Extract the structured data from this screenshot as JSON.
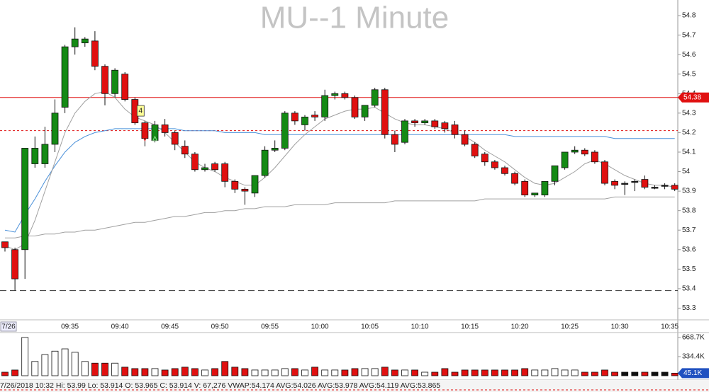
{
  "chart_data": {
    "type": "candlestick",
    "title": "MU--1 Minute",
    "categories": [
      "7/26",
      null,
      null,
      null,
      null,
      null,
      "09:35",
      null,
      null,
      null,
      null,
      "09:40",
      null,
      null,
      null,
      null,
      "09:45",
      null,
      null,
      null,
      null,
      "09:50",
      null,
      null,
      null,
      null,
      "09:55",
      null,
      null,
      null,
      null,
      "10:00",
      null,
      null,
      null,
      null,
      "10:05",
      null,
      null,
      null,
      null,
      "10:10",
      null,
      null,
      null,
      null,
      "10:15",
      null,
      null,
      null,
      null,
      "10:20",
      null,
      null,
      null,
      null,
      "10:25",
      null,
      null,
      null,
      null,
      "10:30",
      null,
      null,
      null,
      null,
      "10:35",
      null
    ],
    "open": [
      53.64,
      53.6,
      53.6,
      54.04,
      54.04,
      54.14,
      54.33,
      54.64,
      54.66,
      54.67,
      54.54,
      54.4,
      54.5,
      54.37,
      54.25,
      54.16,
      54.24,
      54.2,
      54.13,
      54.09,
      54.01,
      54.04,
      54.04,
      53.95,
      53.91,
      53.89,
      53.98,
      54.11,
      54.12,
      54.3,
      54.24,
      54.29,
      54.28,
      54.39,
      54.4,
      54.38,
      54.28,
      54.34,
      54.42,
      54.19,
      54.15,
      54.26,
      54.25,
      54.26,
      54.25,
      54.24,
      54.19,
      54.14,
      54.09,
      54.05,
      54.02,
      53.99,
      53.95,
      53.88,
      53.88,
      53.95,
      54.02,
      54.1,
      54.11,
      54.1,
      54.05,
      53.95,
      53.94,
      53.95,
      53.96,
      53.92,
      53.93,
      53.93
    ],
    "high": [
      53.64,
      53.61,
      54.12,
      54.18,
      54.23,
      54.37,
      54.65,
      54.74,
      54.69,
      54.72,
      54.55,
      54.53,
      54.51,
      54.38,
      54.26,
      54.26,
      54.27,
      54.21,
      54.16,
      54.1,
      54.04,
      54.05,
      54.05,
      53.96,
      53.92,
      53.98,
      54.13,
      54.16,
      54.31,
      54.31,
      54.29,
      54.31,
      54.42,
      54.41,
      54.41,
      54.39,
      54.34,
      54.43,
      54.43,
      54.21,
      54.27,
      54.27,
      54.27,
      54.27,
      54.26,
      54.26,
      54.21,
      54.15,
      54.1,
      54.06,
      54.03,
      54.0,
      53.96,
      53.89,
      53.95,
      54.03,
      54.1,
      54.13,
      54.12,
      54.11,
      54.06,
      53.96,
      53.95,
      53.96,
      53.98,
      53.93,
      53.94,
      53.94
    ],
    "low": [
      53.59,
      53.39,
      53.45,
      54.02,
      54.02,
      54.1,
      54.3,
      54.6,
      54.64,
      54.52,
      54.34,
      54.38,
      54.36,
      54.24,
      54.13,
      54.15,
      54.18,
      54.11,
      54.07,
      54.0,
      54.0,
      54.0,
      53.92,
      53.89,
      53.83,
      53.87,
      53.97,
      54.1,
      54.11,
      54.24,
      54.21,
      54.26,
      54.26,
      54.37,
      54.37,
      54.27,
      54.26,
      54.33,
      54.17,
      54.1,
      54.14,
      54.23,
      54.24,
      54.22,
      54.2,
      54.17,
      54.13,
      54.07,
      54.03,
      54.01,
      53.98,
      53.93,
      53.87,
      53.87,
      53.87,
      53.93,
      54.01,
      54.09,
      54.08,
      54.04,
      53.93,
      53.91,
      53.88,
      53.9,
      53.91,
      53.91,
      53.91,
      53.9
    ],
    "close": [
      53.61,
      53.45,
      54.12,
      54.12,
      54.14,
      54.3,
      54.64,
      54.68,
      54.68,
      54.54,
      54.4,
      54.52,
      54.37,
      54.25,
      54.17,
      54.24,
      54.2,
      54.14,
      54.09,
      54.01,
      54.02,
      54.01,
      53.95,
      53.91,
      53.9,
      53.98,
      54.11,
      54.12,
      54.3,
      54.26,
      54.28,
      54.28,
      54.39,
      54.4,
      54.38,
      54.28,
      54.34,
      54.42,
      54.19,
      54.14,
      54.26,
      54.25,
      54.26,
      54.23,
      54.22,
      54.19,
      54.14,
      54.08,
      54.05,
      54.02,
      53.99,
      53.94,
      53.88,
      53.89,
      53.95,
      54.03,
      54.1,
      54.11,
      54.09,
      54.05,
      53.94,
      53.93,
      53.94,
      53.95,
      53.92,
      53.92,
      53.93,
      53.91
    ],
    "up_color": "#148a14",
    "down_color": "#e01010",
    "ylim": [
      53.24,
      54.88
    ],
    "yticks": [
      53.3,
      53.4,
      53.5,
      53.6,
      53.7,
      53.8,
      53.9,
      54,
      54.1,
      54.2,
      54.3,
      54.4,
      54.5,
      54.6,
      54.7,
      54.8
    ],
    "lines": [
      {
        "color": "#4a90d9",
        "values": [
          53.7,
          53.69,
          53.78,
          53.86,
          53.95,
          54.03,
          54.1,
          54.15,
          54.18,
          54.2,
          54.21,
          54.22,
          54.22,
          54.22,
          54.22,
          54.22,
          54.22,
          54.22,
          54.21,
          54.21,
          54.21,
          54.21,
          54.2,
          54.2,
          54.2,
          54.2,
          54.19,
          54.19,
          54.19,
          54.19,
          54.19,
          54.19,
          54.19,
          54.19,
          54.19,
          54.19,
          54.19,
          54.19,
          54.19,
          54.19,
          54.19,
          54.19,
          54.19,
          54.19,
          54.19,
          54.19,
          54.19,
          54.19,
          54.19,
          54.19,
          54.19,
          54.18,
          54.18,
          54.18,
          54.18,
          54.18,
          54.18,
          54.18,
          54.18,
          54.18,
          54.18,
          54.17,
          54.17,
          54.17,
          54.17,
          54.17,
          54.17,
          54.17
        ]
      },
      {
        "color": "#a0a0a0",
        "values": [
          53.62,
          53.6,
          53.63,
          53.75,
          53.9,
          54.05,
          54.2,
          54.3,
          54.36,
          54.4,
          54.41,
          54.38,
          54.32,
          54.28,
          54.26,
          54.24,
          54.2,
          54.15,
          54.1,
          54.05,
          54.02,
          54.0,
          53.97,
          53.95,
          53.93,
          53.93,
          53.97,
          54.02,
          54.08,
          54.14,
          54.19,
          54.23,
          54.27,
          54.29,
          54.31,
          54.32,
          54.32,
          54.33,
          54.3,
          54.27,
          54.25,
          54.24,
          54.24,
          54.23,
          54.22,
          54.2,
          54.18,
          54.15,
          54.11,
          54.08,
          54.05,
          54.01,
          53.97,
          53.94,
          53.93,
          53.94,
          53.97,
          54.0,
          54.04,
          54.06,
          54.04,
          54.01,
          53.98,
          53.96,
          53.94,
          53.93,
          53.93,
          53.92
        ]
      },
      {
        "color": "#a0a0a0",
        "values": [
          53.66,
          53.66,
          53.67,
          53.67,
          53.68,
          53.68,
          53.69,
          53.69,
          53.7,
          53.7,
          53.71,
          53.72,
          53.73,
          53.74,
          53.74,
          53.75,
          53.76,
          53.77,
          53.77,
          53.78,
          53.79,
          53.79,
          53.8,
          53.8,
          53.81,
          53.81,
          53.82,
          53.82,
          53.82,
          53.83,
          53.83,
          53.83,
          53.83,
          53.84,
          53.84,
          53.84,
          53.84,
          53.84,
          53.84,
          53.85,
          53.85,
          53.85,
          53.85,
          53.85,
          53.85,
          53.85,
          53.85,
          53.85,
          53.86,
          53.86,
          53.86,
          53.86,
          53.86,
          53.86,
          53.86,
          53.86,
          53.86,
          53.86,
          53.86,
          53.86,
          53.86,
          53.87,
          53.87,
          53.87,
          53.87,
          53.87,
          53.87,
          53.87
        ]
      }
    ],
    "reference_lines": [
      {
        "value": 54.38,
        "label": "54.38",
        "color": "#e01010",
        "style": "solid"
      },
      {
        "value": 54.21,
        "color": "#e01010",
        "style": "dashed"
      },
      {
        "value": 53.39,
        "color": "#333333",
        "style": "dashed"
      }
    ],
    "annotations": [
      {
        "text": "4"
      }
    ],
    "volume": {
      "values": [
        62000,
        100000,
        670000,
        250000,
        370000,
        430000,
        470000,
        410000,
        250000,
        220000,
        220000,
        220000,
        150000,
        125000,
        125000,
        125000,
        100000,
        125000,
        150000,
        125000,
        100000,
        125000,
        250000,
        150000,
        125000,
        100000,
        100000,
        100000,
        125000,
        125000,
        100000,
        150000,
        100000,
        100000,
        100000,
        125000,
        125000,
        125000,
        150000,
        100000,
        100000,
        100000,
        62000,
        62000,
        125000,
        62000,
        100000,
        100000,
        100000,
        100000,
        100000,
        100000,
        125000,
        100000,
        100000,
        125000,
        100000,
        100000,
        62000,
        62000,
        100000,
        62000,
        62000,
        62000,
        62000,
        62000,
        62000,
        45100
      ],
      "ylim": [
        0,
        755000
      ],
      "yticks": [
        {
          "value": 668700,
          "label": "668.7K"
        },
        {
          "value": 334400,
          "label": "334.4K"
        }
      ],
      "current": {
        "value": 45100,
        "label": "45.1K"
      }
    },
    "status": "7/26/2018 10:32  Hi: 53.99  Lo: 53.914  O: 53.965  C: 53.914  V: 67,276  VWAP:54.174  AVG:54.026  AVG:53.978  AVG:54.119  AVG:53.865"
  }
}
